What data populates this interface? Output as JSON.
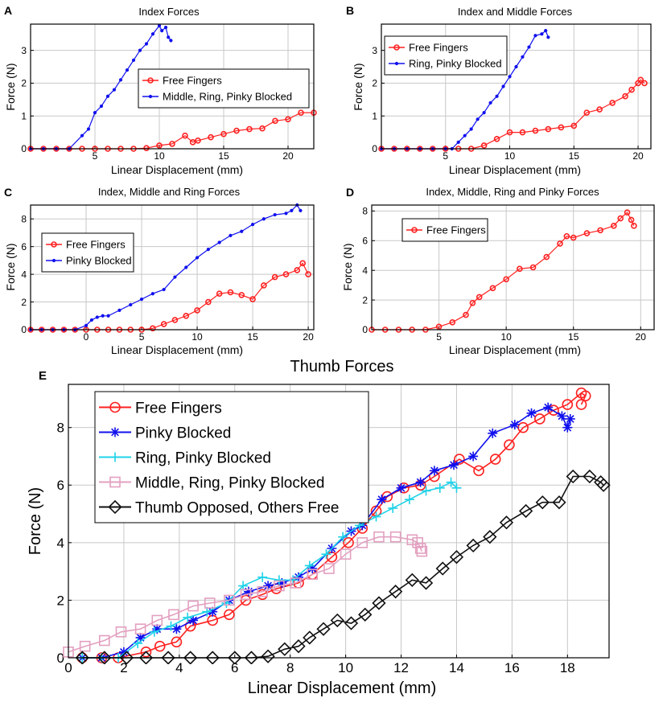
{
  "colors": {
    "red": "#ff2020",
    "blue": "#1010ee",
    "cyan": "#1ed2e8",
    "pink": "#e3a0c0",
    "black": "#111111",
    "grid": "#c8c8c8"
  },
  "chart_data": [
    {
      "id": "A",
      "type": "line",
      "panel_label": "A",
      "title": "Index Forces",
      "xlabel": "Linear Displacement (mm)",
      "ylabel": "Force (N)",
      "xlim": [
        0,
        22
      ],
      "ylim": [
        0,
        3.8
      ],
      "xticks": [
        5,
        10,
        15,
        20
      ],
      "yticks": [
        0,
        1,
        2,
        3
      ],
      "grid": true,
      "legend_position": "right",
      "series": [
        {
          "name": "Free Fingers",
          "color": "red",
          "marker": "circle",
          "x": [
            0,
            1,
            2,
            3,
            4,
            5,
            6,
            7,
            8,
            9,
            10,
            11,
            12,
            12.6,
            13,
            14,
            15,
            16,
            17,
            18,
            19,
            20,
            21,
            22
          ],
          "y": [
            0,
            0,
            0,
            0,
            0,
            0,
            0,
            0,
            0,
            0.02,
            0.1,
            0.15,
            0.4,
            0.2,
            0.25,
            0.35,
            0.45,
            0.55,
            0.6,
            0.62,
            0.85,
            0.9,
            1.1,
            1.1
          ]
        },
        {
          "name": "Middle, Ring, Pinky Blocked",
          "color": "blue",
          "marker": "dot",
          "x": [
            0,
            1,
            2,
            3,
            4,
            4.5,
            5,
            5.5,
            6,
            6.5,
            7,
            7.5,
            8,
            8.5,
            9,
            9.5,
            10,
            10.2,
            10.5,
            10.7,
            10.9
          ],
          "y": [
            0,
            0,
            0,
            0,
            0.4,
            0.6,
            1.1,
            1.3,
            1.6,
            1.8,
            2.1,
            2.4,
            2.7,
            3.0,
            3.2,
            3.5,
            3.75,
            3.6,
            3.7,
            3.4,
            3.3
          ]
        }
      ]
    },
    {
      "id": "B",
      "type": "line",
      "panel_label": "B",
      "title": "Index and Middle Forces",
      "xlabel": "Linear Displacement (mm)",
      "ylabel": "Force (N)",
      "xlim": [
        0,
        21
      ],
      "ylim": [
        0,
        3.8
      ],
      "xticks": [
        5,
        10,
        15,
        20
      ],
      "yticks": [
        0,
        1,
        2,
        3
      ],
      "grid": true,
      "legend_position": "top-right",
      "series": [
        {
          "name": "Free Fingers",
          "color": "red",
          "marker": "circle",
          "x": [
            0,
            1,
            2,
            3,
            4,
            5,
            6,
            7,
            8,
            9,
            10,
            11,
            12,
            13,
            14,
            15,
            16,
            17,
            18,
            19,
            19.5,
            20,
            20.2,
            20.5
          ],
          "y": [
            0,
            0,
            0,
            0,
            0,
            0,
            0,
            0,
            0.1,
            0.3,
            0.5,
            0.5,
            0.55,
            0.6,
            0.65,
            0.7,
            1.1,
            1.2,
            1.4,
            1.6,
            1.8,
            2.0,
            2.1,
            2.0
          ]
        },
        {
          "name": "Ring, Pinky Blocked",
          "color": "blue",
          "marker": "dot",
          "x": [
            0,
            1,
            2,
            3,
            4,
            5,
            5.5,
            6,
            6.5,
            7,
            7.5,
            8,
            8.5,
            9,
            9.5,
            10,
            10.5,
            11,
            11.5,
            12,
            12.5,
            12.8,
            13
          ],
          "y": [
            0,
            0,
            0,
            0,
            0,
            0,
            0,
            0.2,
            0.4,
            0.6,
            0.9,
            1.1,
            1.4,
            1.6,
            1.9,
            2.2,
            2.5,
            2.8,
            3.1,
            3.45,
            3.5,
            3.6,
            3.4
          ]
        }
      ]
    },
    {
      "id": "C",
      "type": "line",
      "panel_label": "C",
      "title": "Index, Middle and Ring Forces",
      "xlabel": "Linear Displacement (mm)",
      "ylabel": "Force (N)",
      "xlim": [
        -5,
        20.5
      ],
      "ylim": [
        0,
        9
      ],
      "xticks": [
        0,
        5,
        10,
        15,
        20
      ],
      "yticks": [
        0,
        2,
        4,
        6,
        8
      ],
      "grid": true,
      "legend_position": "left",
      "series": [
        {
          "name": "Free Fingers",
          "color": "red",
          "marker": "circle",
          "x": [
            -5,
            -4,
            -3,
            -2,
            -1,
            0,
            1,
            2,
            3,
            4,
            5,
            6,
            7,
            8,
            9,
            10,
            11,
            12,
            13,
            14,
            15,
            16,
            17,
            18,
            19,
            19.5,
            20
          ],
          "y": [
            0,
            0,
            0,
            0,
            0,
            0,
            0,
            0,
            0,
            0,
            0,
            0.1,
            0.4,
            0.7,
            1.0,
            1.4,
            2.0,
            2.6,
            2.7,
            2.5,
            2.2,
            3.2,
            3.8,
            4.0,
            4.3,
            4.8,
            4.0
          ]
        },
        {
          "name": "Pinky Blocked",
          "color": "blue",
          "marker": "dot",
          "x": [
            -5,
            -4,
            -3,
            -2,
            -1,
            0,
            0.5,
            1,
            1.5,
            2,
            3,
            4,
            5,
            6,
            7,
            8,
            9,
            10,
            11,
            12,
            13,
            14,
            15,
            16,
            17,
            18,
            18.5,
            19,
            19.3
          ],
          "y": [
            0,
            0,
            0,
            0,
            0,
            0.3,
            0.7,
            0.9,
            1.0,
            1.0,
            1.4,
            1.8,
            2.2,
            2.6,
            2.9,
            3.8,
            4.5,
            5.2,
            5.8,
            6.3,
            6.8,
            7.1,
            7.6,
            8.0,
            8.3,
            8.4,
            8.6,
            9.0,
            8.6
          ]
        }
      ]
    },
    {
      "id": "D",
      "type": "line",
      "panel_label": "D",
      "title": "Index, Middle, Ring and Pinky Forces",
      "xlabel": "Linear Displacement (mm)",
      "ylabel": "Force (N)",
      "xlim": [
        0,
        21
      ],
      "ylim": [
        0,
        8.4
      ],
      "xticks": [
        5,
        10,
        15,
        20
      ],
      "yticks": [
        0,
        2,
        4,
        6,
        8
      ],
      "grid": true,
      "legend_position": "top-left",
      "series": [
        {
          "name": "Free Fingers",
          "color": "red",
          "marker": "circle",
          "x": [
            0,
            1,
            2,
            3,
            4,
            5,
            6,
            7,
            7.5,
            8,
            9,
            10,
            11,
            12,
            13,
            14,
            14.5,
            15,
            16,
            17,
            18,
            18.5,
            19,
            19.3,
            19.5
          ],
          "y": [
            0,
            0,
            0,
            0,
            0,
            0.2,
            0.5,
            1.0,
            1.8,
            2.2,
            2.8,
            3.4,
            4.1,
            4.2,
            4.9,
            5.8,
            6.3,
            6.2,
            6.5,
            6.7,
            7.0,
            7.5,
            7.9,
            7.4,
            7.0
          ]
        }
      ]
    },
    {
      "id": "E",
      "type": "line",
      "panel_label": "E",
      "title": "Thumb Forces",
      "xlabel": "Linear Displacement (mm)",
      "ylabel": "Force (N)",
      "xlim": [
        0,
        19.5
      ],
      "ylim": [
        0,
        9.5
      ],
      "xticks": [
        0,
        2,
        4,
        6,
        8,
        10,
        12,
        14,
        16,
        18
      ],
      "yticks": [
        0,
        2,
        4,
        6,
        8
      ],
      "grid": true,
      "legend_position": "top-left",
      "series": [
        {
          "name": "Free Fingers",
          "color": "red",
          "marker": "circle",
          "x": [
            0.5,
            1.2,
            1.8,
            2.8,
            3.3,
            3.9,
            4.4,
            5.2,
            5.8,
            6.4,
            7.0,
            7.5,
            8.3,
            8.8,
            9.5,
            10.1,
            10.6,
            11.1,
            11.5,
            12.1,
            12.7,
            13.2,
            14.1,
            14.8,
            15.4,
            15.9,
            16.4,
            17.0,
            17.5,
            18.0,
            18.5,
            18.65,
            18.5
          ],
          "y": [
            0,
            0,
            0,
            0.2,
            0.4,
            0.55,
            1.1,
            1.3,
            1.5,
            2.0,
            2.2,
            2.4,
            2.6,
            2.9,
            3.5,
            4.0,
            4.5,
            5.1,
            5.6,
            5.9,
            6.0,
            6.3,
            6.9,
            6.5,
            6.9,
            7.4,
            8.0,
            8.3,
            8.6,
            8.8,
            9.2,
            9.1,
            8.8
          ]
        },
        {
          "name": "Pinky Blocked",
          "color": "blue",
          "marker": "asterisk",
          "x": [
            0.5,
            1.2,
            2.0,
            2.6,
            3.2,
            3.9,
            4.5,
            5.2,
            5.8,
            6.5,
            7.2,
            7.7,
            8.3,
            8.8,
            9.5,
            10.2,
            10.6,
            11.3,
            12.0,
            12.7,
            13.2,
            13.9,
            14.6,
            15.3,
            16.1,
            16.7,
            17.3,
            17.8,
            18.0,
            18.1
          ],
          "y": [
            0,
            0,
            0.2,
            0.7,
            1.0,
            1.0,
            1.3,
            1.6,
            2.0,
            2.3,
            2.5,
            2.6,
            2.8,
            3.1,
            3.8,
            4.4,
            4.6,
            5.5,
            5.9,
            6.1,
            6.5,
            6.7,
            7.0,
            7.8,
            8.1,
            8.5,
            8.7,
            8.4,
            8.0,
            8.3
          ]
        },
        {
          "name": "Ring, Pinky Blocked",
          "color": "cyan",
          "marker": "plus",
          "x": [
            0.5,
            1.2,
            1.8,
            2.5,
            3.1,
            3.7,
            4.3,
            5.0,
            5.7,
            6.3,
            7.0,
            7.6,
            8.1,
            8.7,
            9.3,
            9.9,
            10.5,
            11.1,
            11.7,
            12.3,
            12.9,
            13.4,
            13.8,
            14.0
          ],
          "y": [
            0,
            0,
            0,
            0.5,
            0.9,
            1.1,
            1.4,
            1.6,
            1.9,
            2.5,
            2.8,
            2.7,
            2.7,
            3.2,
            3.6,
            4.2,
            4.6,
            4.9,
            5.2,
            5.5,
            5.8,
            5.9,
            6.1,
            5.9
          ]
        },
        {
          "name": "Middle, Ring, Pinky Blocked",
          "color": "pink",
          "marker": "square",
          "x": [
            0,
            0.6,
            1.3,
            1.9,
            2.6,
            3.2,
            3.8,
            4.5,
            5.1,
            5.8,
            6.4,
            7.0,
            7.6,
            8.2,
            8.8,
            9.4,
            10.0,
            10.6,
            11.2,
            11.8,
            12.4,
            12.6,
            12.7,
            12.75
          ],
          "y": [
            0.2,
            0.4,
            0.6,
            0.9,
            1.0,
            1.3,
            1.5,
            1.8,
            1.9,
            2.0,
            2.2,
            2.3,
            2.5,
            2.6,
            2.9,
            3.1,
            3.6,
            4.0,
            4.2,
            4.2,
            4.1,
            4.0,
            3.8,
            3.7
          ]
        },
        {
          "name": "Thumb Opposed, Others Free",
          "color": "black",
          "marker": "diamond",
          "x": [
            0.5,
            1.3,
            2.1,
            2.8,
            3.6,
            4.4,
            5.2,
            6.0,
            6.6,
            7.2,
            7.8,
            8.3,
            8.7,
            9.2,
            9.7,
            10.2,
            10.7,
            11.2,
            11.8,
            12.4,
            12.9,
            13.5,
            14.0,
            14.6,
            15.2,
            15.8,
            16.5,
            17.1,
            17.7,
            18.2,
            18.8,
            19.2,
            19.3
          ],
          "y": [
            0,
            0,
            0,
            0,
            0,
            0,
            0,
            0,
            0,
            0.05,
            0.3,
            0.4,
            0.7,
            1.0,
            1.3,
            1.2,
            1.5,
            1.9,
            2.3,
            2.7,
            2.6,
            3.1,
            3.5,
            3.9,
            4.2,
            4.7,
            5.1,
            5.4,
            5.4,
            6.3,
            6.3,
            6.1,
            6.0
          ]
        }
      ]
    }
  ]
}
